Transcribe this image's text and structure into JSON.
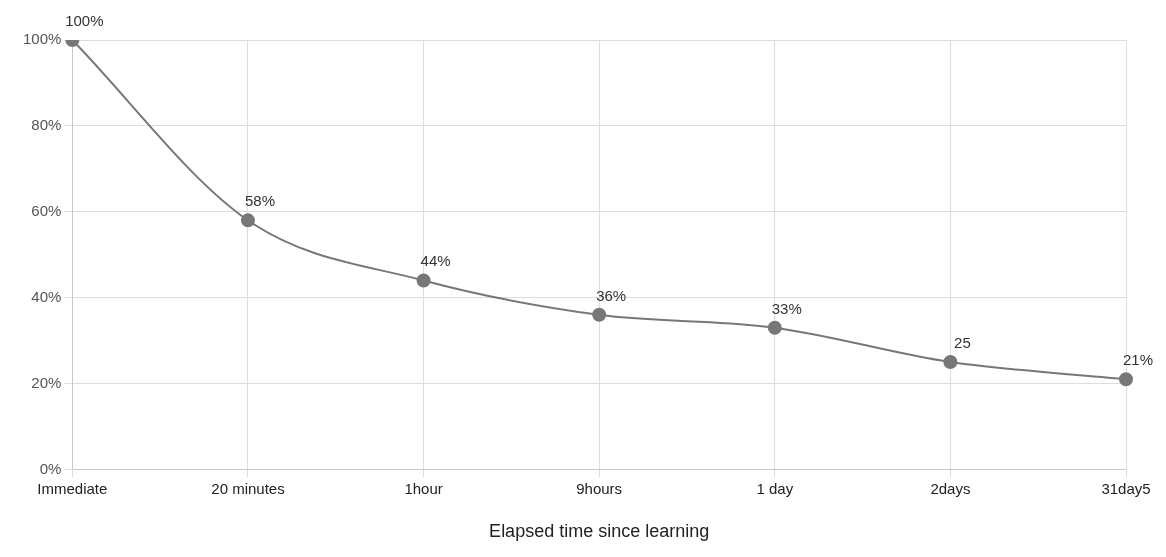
{
  "chart_data": {
    "type": "line",
    "xlabel": "Elapsed time since learning",
    "categories": [
      "Immediate",
      "20 minutes",
      "1hour",
      "9hours",
      "1 day",
      "2days",
      "31day5"
    ],
    "series": [
      {
        "color": "#777777",
        "values": [
          100,
          58,
          44,
          36,
          33,
          25,
          21
        ]
      }
    ],
    "value_labels": [
      "100%",
      "58%",
      "44%",
      "36%",
      "33%",
      "25",
      "21%"
    ],
    "ylim": [
      0,
      100
    ],
    "yticks": [
      {
        "value": 0,
        "label": "0%"
      },
      {
        "value": 20,
        "label": "20%"
      },
      {
        "value": 40,
        "label": "40%"
      },
      {
        "value": 60,
        "label": "60%"
      },
      {
        "value": 80,
        "label": "80%"
      },
      {
        "value": 100,
        "label": "100%"
      }
    ],
    "grid": true,
    "legend": false,
    "marker": "circle",
    "line_style": "solid"
  }
}
